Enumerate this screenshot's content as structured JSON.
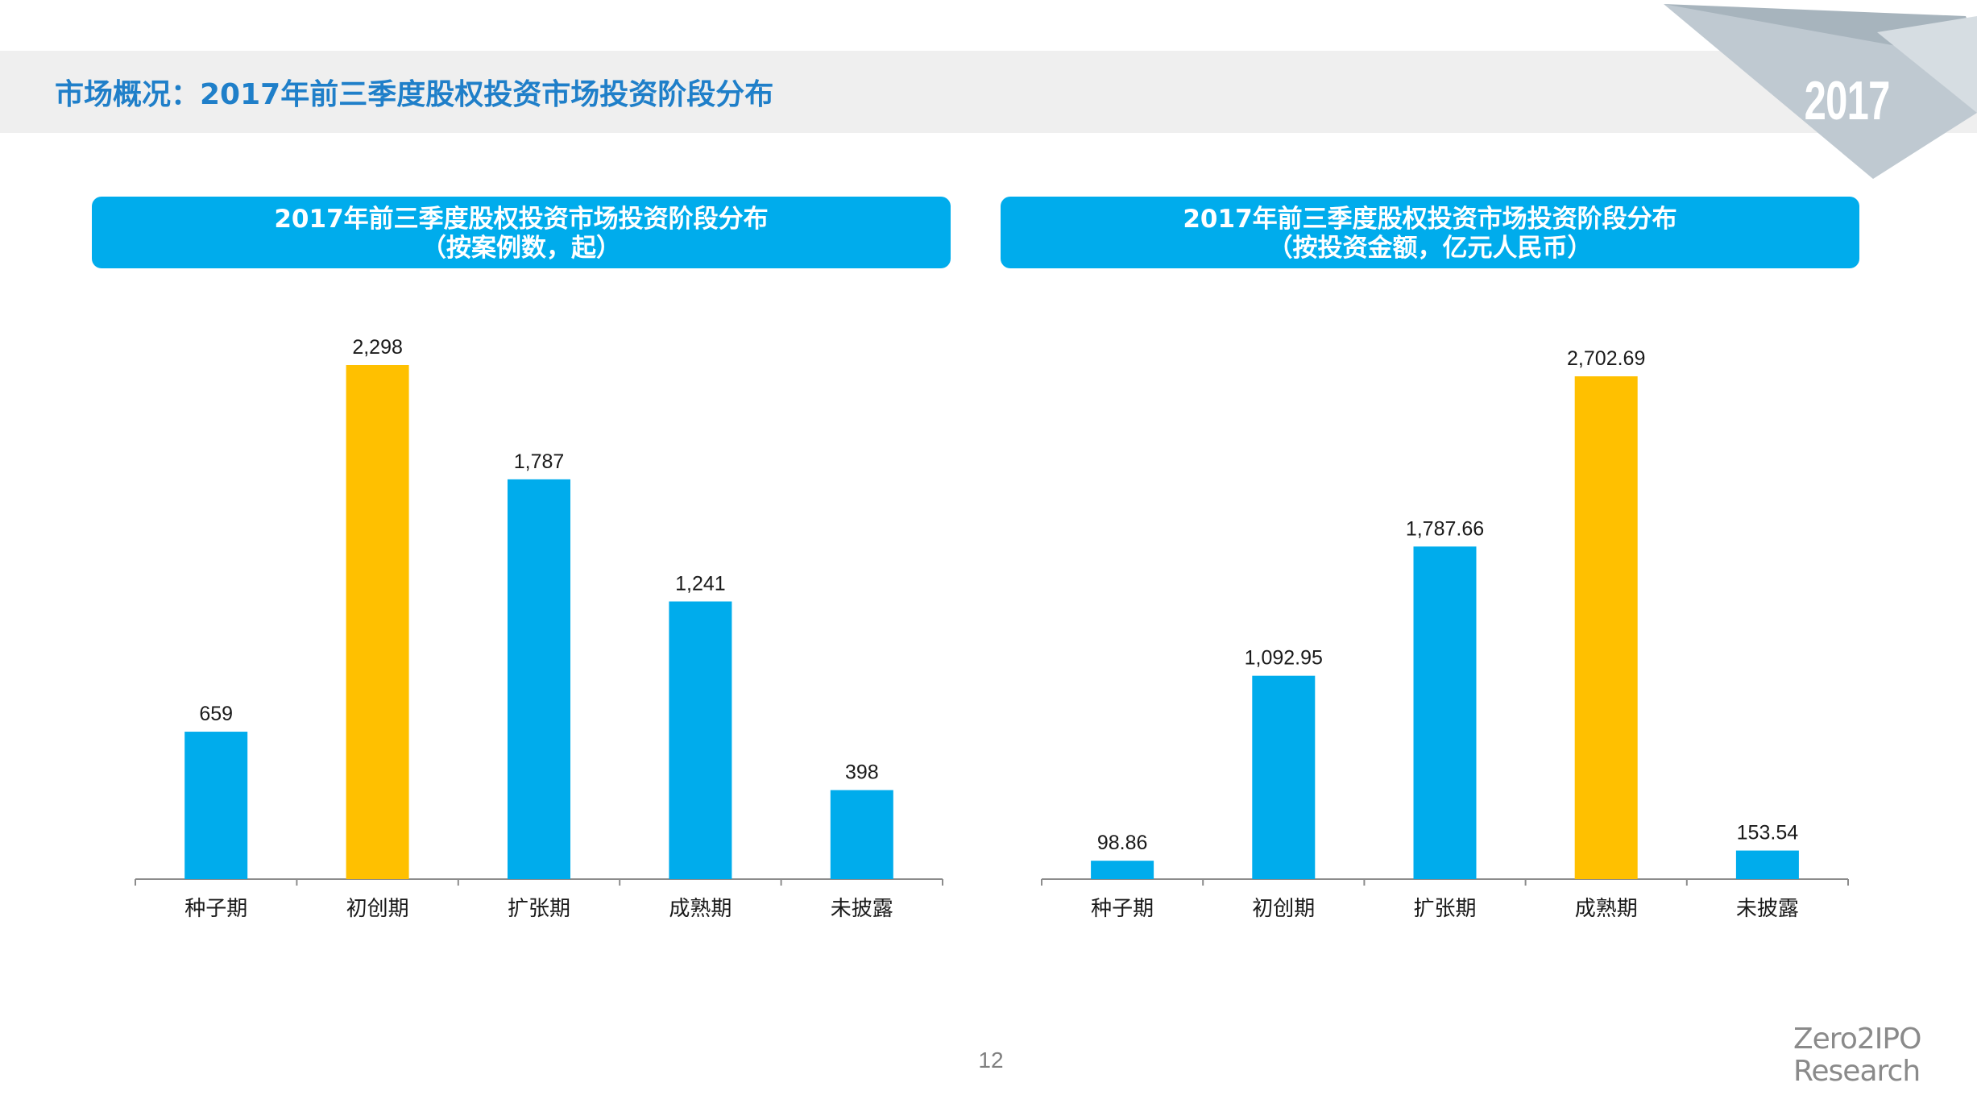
{
  "header": {
    "title": "市场概况：2017年前三季度股权投资市场投资阶段分布",
    "year_badge": "2017"
  },
  "colors": {
    "accent": "#00acec",
    "highlight": "#ffc000",
    "title": "#1f7fc9",
    "header_band": "#efefef"
  },
  "charts": [
    {
      "title": "2017年前三季度股权投资市场投资阶段分布",
      "subtitle": "（按案例数，起）"
    },
    {
      "title": "2017年前三季度股权投资市场投资阶段分布",
      "subtitle": "（按投资金额，亿元人民币）"
    }
  ],
  "chart_data": [
    {
      "type": "bar",
      "title": "2017年前三季度股权投资市场投资阶段分布",
      "subtitle": "（按案例数，起）",
      "categories": [
        "种子期",
        "初创期",
        "扩张期",
        "成熟期",
        "未披露"
      ],
      "values": [
        659,
        2298,
        1787,
        1241,
        398
      ],
      "value_labels": [
        "659",
        "2,298",
        "1,787",
        "1,241",
        "398"
      ],
      "highlight_index": 1,
      "grid": false
    },
    {
      "type": "bar",
      "title": "2017年前三季度股权投资市场投资阶段分布",
      "subtitle": "（按投资金额，亿元人民币）",
      "categories": [
        "种子期",
        "初创期",
        "扩张期",
        "成熟期",
        "未披露"
      ],
      "values": [
        98.86,
        1092.95,
        1787.66,
        2702.69,
        153.54
      ],
      "value_labels": [
        "98.86",
        "1,092.95",
        "1,787.66",
        "2,702.69",
        "153.54"
      ],
      "highlight_index": 3,
      "grid": false
    }
  ],
  "footer": {
    "page_number": "12",
    "brand_line1": "Zero2IPO",
    "brand_line2": "Research"
  }
}
